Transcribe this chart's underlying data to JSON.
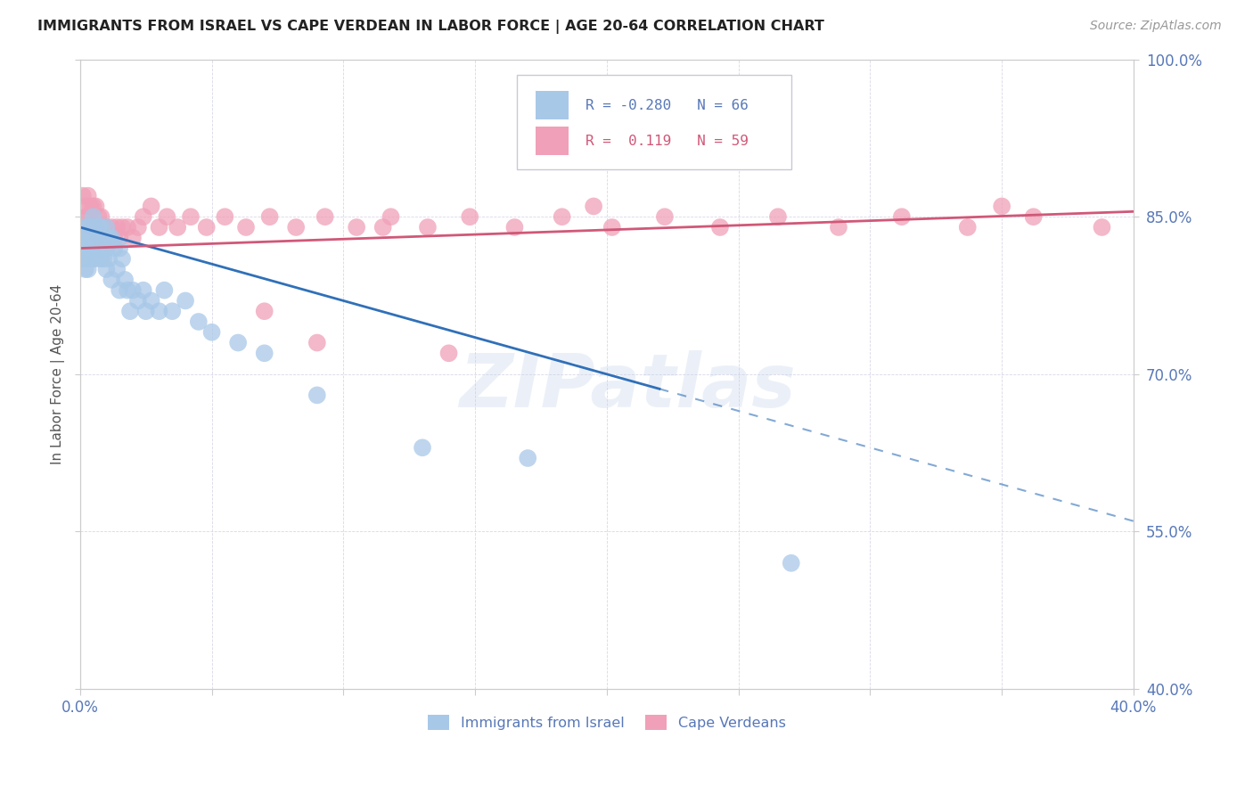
{
  "title": "IMMIGRANTS FROM ISRAEL VS CAPE VERDEAN IN LABOR FORCE | AGE 20-64 CORRELATION CHART",
  "source": "Source: ZipAtlas.com",
  "ylabel": "In Labor Force | Age 20-64",
  "xlim": [
    0.0,
    0.4
  ],
  "ylim": [
    0.4,
    1.0
  ],
  "xticks": [
    0.0,
    0.05,
    0.1,
    0.15,
    0.2,
    0.25,
    0.3,
    0.35,
    0.4
  ],
  "yticks": [
    0.4,
    0.55,
    0.7,
    0.85,
    1.0
  ],
  "ytick_labels": [
    "40.0%",
    "55.0%",
    "70.0%",
    "85.0%",
    "100.0%"
  ],
  "legend_blue_r": "-0.280",
  "legend_blue_n": "66",
  "legend_pink_r": "0.119",
  "legend_pink_n": "59",
  "blue_color": "#a8c8e8",
  "pink_color": "#f0a0b8",
  "blue_line_color": "#3070b8",
  "pink_line_color": "#d05878",
  "tick_color": "#5878b8",
  "watermark": "ZIPatlas",
  "blue_scatter_x": [
    0.001,
    0.001,
    0.001,
    0.002,
    0.002,
    0.002,
    0.002,
    0.002,
    0.003,
    0.003,
    0.003,
    0.003,
    0.003,
    0.004,
    0.004,
    0.004,
    0.004,
    0.005,
    0.005,
    0.005,
    0.005,
    0.005,
    0.006,
    0.006,
    0.006,
    0.006,
    0.007,
    0.007,
    0.007,
    0.008,
    0.008,
    0.008,
    0.009,
    0.009,
    0.01,
    0.01,
    0.01,
    0.011,
    0.011,
    0.012,
    0.012,
    0.013,
    0.014,
    0.015,
    0.015,
    0.016,
    0.017,
    0.018,
    0.019,
    0.02,
    0.022,
    0.024,
    0.025,
    0.027,
    0.03,
    0.032,
    0.035,
    0.04,
    0.045,
    0.05,
    0.06,
    0.07,
    0.09,
    0.13,
    0.17,
    0.27
  ],
  "blue_scatter_y": [
    0.83,
    0.82,
    0.81,
    0.84,
    0.83,
    0.82,
    0.81,
    0.8,
    0.84,
    0.83,
    0.82,
    0.81,
    0.8,
    0.84,
    0.83,
    0.82,
    0.81,
    0.85,
    0.84,
    0.83,
    0.82,
    0.81,
    0.84,
    0.83,
    0.82,
    0.81,
    0.84,
    0.83,
    0.82,
    0.84,
    0.82,
    0.81,
    0.83,
    0.81,
    0.84,
    0.82,
    0.8,
    0.83,
    0.81,
    0.83,
    0.79,
    0.82,
    0.8,
    0.82,
    0.78,
    0.81,
    0.79,
    0.78,
    0.76,
    0.78,
    0.77,
    0.78,
    0.76,
    0.77,
    0.76,
    0.78,
    0.76,
    0.77,
    0.75,
    0.74,
    0.73,
    0.72,
    0.68,
    0.63,
    0.62,
    0.52
  ],
  "pink_scatter_x": [
    0.001,
    0.002,
    0.002,
    0.003,
    0.003,
    0.004,
    0.004,
    0.005,
    0.005,
    0.006,
    0.006,
    0.007,
    0.007,
    0.008,
    0.008,
    0.009,
    0.01,
    0.011,
    0.012,
    0.013,
    0.014,
    0.015,
    0.016,
    0.018,
    0.02,
    0.022,
    0.024,
    0.027,
    0.03,
    0.033,
    0.037,
    0.042,
    0.048,
    0.055,
    0.063,
    0.072,
    0.082,
    0.093,
    0.105,
    0.118,
    0.132,
    0.148,
    0.165,
    0.183,
    0.202,
    0.222,
    0.243,
    0.265,
    0.288,
    0.312,
    0.337,
    0.362,
    0.388,
    0.07,
    0.09,
    0.115,
    0.14,
    0.195,
    0.35
  ],
  "pink_scatter_y": [
    0.87,
    0.86,
    0.85,
    0.87,
    0.85,
    0.86,
    0.84,
    0.86,
    0.84,
    0.86,
    0.84,
    0.85,
    0.83,
    0.85,
    0.83,
    0.84,
    0.84,
    0.83,
    0.84,
    0.83,
    0.84,
    0.83,
    0.84,
    0.84,
    0.83,
    0.84,
    0.85,
    0.86,
    0.84,
    0.85,
    0.84,
    0.85,
    0.84,
    0.85,
    0.84,
    0.85,
    0.84,
    0.85,
    0.84,
    0.85,
    0.84,
    0.85,
    0.84,
    0.85,
    0.84,
    0.85,
    0.84,
    0.85,
    0.84,
    0.85,
    0.84,
    0.85,
    0.84,
    0.76,
    0.73,
    0.84,
    0.72,
    0.86,
    0.86
  ],
  "blue_line_x0": 0.0,
  "blue_line_x_solid_end": 0.22,
  "blue_line_x1": 0.4,
  "blue_line_y0": 0.84,
  "blue_line_y1": 0.56,
  "pink_line_x0": 0.0,
  "pink_line_x1": 0.4,
  "pink_line_y0": 0.82,
  "pink_line_y1": 0.855
}
